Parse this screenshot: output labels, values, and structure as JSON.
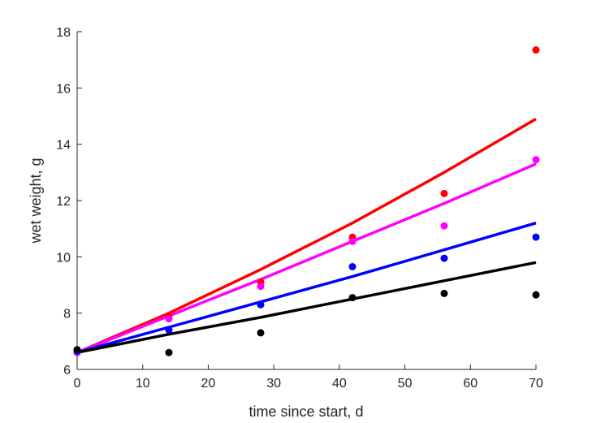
{
  "chart_data": {
    "type": "scatter",
    "xlabel": "time since start, d",
    "ylabel": "wet weight, g",
    "xlim": [
      0,
      70
    ],
    "ylim": [
      6,
      18
    ],
    "xticks": [
      0,
      10,
      20,
      30,
      40,
      50,
      60,
      70
    ],
    "yticks": [
      6,
      8,
      10,
      12,
      14,
      16,
      18
    ],
    "grid": false,
    "box": "left-bottom",
    "series": [
      {
        "color": "#ff0000",
        "points": {
          "x": [
            0,
            14,
            28,
            42,
            56,
            70
          ],
          "y": [
            6.6,
            7.9,
            9.1,
            10.7,
            12.25,
            17.35
          ]
        },
        "fit": {
          "x": [
            0,
            14,
            28,
            42,
            56,
            70
          ],
          "y": [
            6.6,
            8.0,
            9.55,
            11.2,
            13.0,
            14.9
          ]
        }
      },
      {
        "color": "#ff00ff",
        "points": {
          "x": [
            0,
            14,
            28,
            42,
            56,
            70
          ],
          "y": [
            6.6,
            7.8,
            8.95,
            10.55,
            11.1,
            13.45
          ]
        },
        "fit": {
          "x": [
            0,
            14,
            28,
            42,
            56,
            70
          ],
          "y": [
            6.6,
            7.9,
            9.2,
            10.55,
            11.9,
            13.3
          ]
        }
      },
      {
        "color": "#0000ff",
        "points": {
          "x": [
            0,
            14,
            28,
            42,
            56,
            70
          ],
          "y": [
            6.65,
            7.4,
            8.3,
            9.65,
            9.95,
            10.7
          ]
        },
        "fit": {
          "x": [
            0,
            14,
            28,
            42,
            56,
            70
          ],
          "y": [
            6.6,
            7.5,
            8.4,
            9.3,
            10.25,
            11.2
          ]
        }
      },
      {
        "color": "#000000",
        "points": {
          "x": [
            0,
            14,
            28,
            42,
            56,
            70
          ],
          "y": [
            6.7,
            6.6,
            7.3,
            8.55,
            8.7,
            8.65
          ]
        },
        "fit": {
          "x": [
            0,
            14,
            28,
            42,
            56,
            70
          ],
          "y": [
            6.6,
            7.25,
            7.85,
            8.5,
            9.15,
            9.8
          ]
        }
      }
    ]
  }
}
